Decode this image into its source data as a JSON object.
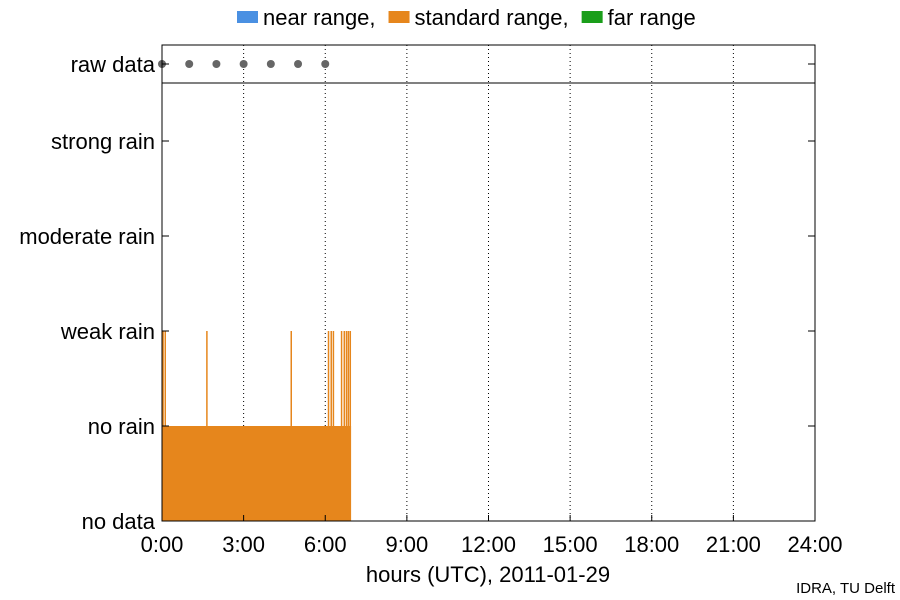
{
  "chart_data": {
    "type": "bar",
    "xlabel": "hours (UTC), 2011-01-29",
    "credit": "IDRA, TU Delft",
    "x_ticks": [
      "0:00",
      "3:00",
      "6:00",
      "9:00",
      "12:00",
      "15:00",
      "18:00",
      "21:00",
      "24:00"
    ],
    "xlim": [
      0,
      24
    ],
    "y_categories": [
      "no data",
      "no rain",
      "weak rain",
      "moderate rain",
      "strong rain",
      "raw data"
    ],
    "legend": {
      "placement": "top",
      "entries": [
        {
          "label": "near range,",
          "color": "#4a90e2"
        },
        {
          "label": "standard range,",
          "color": "#e6861c"
        },
        {
          "label": "far range",
          "color": "#1a9e1a"
        }
      ]
    },
    "raw_data_hours": [
      0,
      1,
      2,
      3,
      4,
      5,
      6
    ],
    "series": [
      {
        "range": "standard range",
        "color": "#e6861c",
        "segments": [
          {
            "start": 0.0,
            "end": 6.95,
            "level": "no rain"
          }
        ],
        "spikes": [
          {
            "hour": 0.04,
            "level": "weak rain"
          },
          {
            "hour": 0.12,
            "level": "weak rain"
          },
          {
            "hour": 1.65,
            "level": "weak rain"
          },
          {
            "hour": 4.75,
            "level": "weak rain"
          },
          {
            "hour": 6.12,
            "level": "weak rain"
          },
          {
            "hour": 6.22,
            "level": "weak rain"
          },
          {
            "hour": 6.3,
            "level": "weak rain"
          },
          {
            "hour": 6.6,
            "level": "weak rain"
          },
          {
            "hour": 6.7,
            "level": "weak rain"
          },
          {
            "hour": 6.78,
            "level": "weak rain"
          },
          {
            "hour": 6.85,
            "level": "weak rain"
          },
          {
            "hour": 6.92,
            "level": "weak rain"
          }
        ]
      }
    ]
  }
}
